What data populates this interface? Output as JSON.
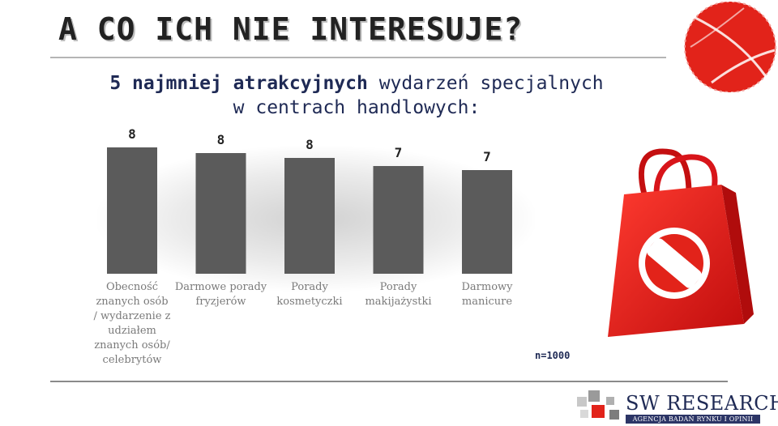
{
  "header": {
    "title": "A CO ICH NIE INTERESUJE?",
    "subtitle_strong": "5 najmniej atrakcyjnych",
    "subtitle_rest": "wydarzeń specjalnych",
    "subtitle_line2": "w centrach handlowych:"
  },
  "chart_data": {
    "type": "bar",
    "categories": [
      "Obecność znanych osób / wydarzenie z udziałem znanych osób/ celebrytów",
      "Darmowe porady fryzjerów",
      "Porady kosmetyczki",
      "Porady makijażystki",
      "Darmowy manicure"
    ],
    "values": [
      8,
      8,
      8,
      7,
      7
    ],
    "value_labels": [
      "8",
      "8",
      "8",
      "7",
      "7"
    ],
    "bar_color": "#5b5b5b",
    "grid": false,
    "legend": "none"
  },
  "footer": {
    "n_label": "n=1000",
    "logo_main": "SW RESEARCH",
    "logo_sub": "AGENCJA BADAŃ RYNKU I OPINII"
  },
  "colors": {
    "accent_red": "#e2231a",
    "navy": "#1f2a55"
  },
  "icons": [
    "shopping-bag-icon",
    "no-entry-icon",
    "stamp-circle-icon",
    "logo-cubes-icon"
  ]
}
